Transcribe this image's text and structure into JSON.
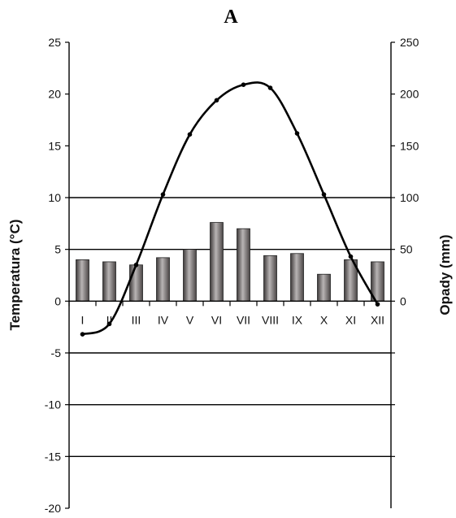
{
  "chart_data": {
    "type": "bar+line",
    "title": "A",
    "categories": [
      "I",
      "II",
      "III",
      "IV",
      "V",
      "VI",
      "VII",
      "VIII",
      "IX",
      "X",
      "XI",
      "XII"
    ],
    "series": [
      {
        "type": "bar",
        "axis": "right",
        "values": [
          40,
          38,
          35,
          42,
          50,
          76,
          70,
          44,
          46,
          26,
          40,
          38
        ]
      },
      {
        "type": "line",
        "axis": "left",
        "values": [
          -3.2,
          -2.2,
          3.5,
          10.3,
          16.1,
          19.4,
          20.9,
          20.6,
          16.2,
          10.3,
          4.3,
          -0.3
        ]
      }
    ],
    "ylabel_left": "Temperatura (°C)",
    "ylabel_right": "Opady (mm)",
    "ylim_left": [
      -20,
      25
    ],
    "ylim_right": [
      0,
      250
    ],
    "yticks_left": [
      -20,
      -15,
      -10,
      -5,
      0,
      5,
      10,
      15,
      20,
      25
    ],
    "yticks_right": [
      0,
      50,
      100,
      150,
      200,
      250
    ],
    "grid": true,
    "colors": {
      "bar": "#6f6969",
      "line": "#000000",
      "grid": "#000000"
    }
  }
}
